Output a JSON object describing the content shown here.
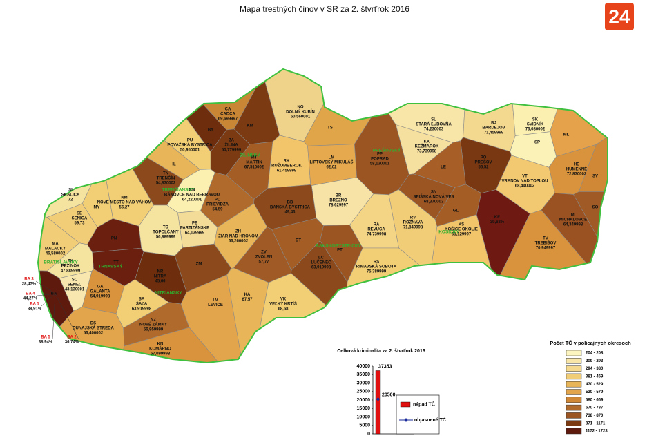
{
  "title": "Mapa trestných činov v SR za 2. štvrťrok 2016",
  "logo": "24",
  "districts": [
    {
      "code": "CA",
      "name": "ČADCA",
      "value": "69,699997",
      "color": "#c98635"
    },
    {
      "code": "KM",
      "color": "#7b3a12"
    },
    {
      "code": "BY",
      "color": "#6e2e0e"
    },
    {
      "code": "ZA",
      "name": "ŽILINA",
      "value": "50,779999",
      "color": "#7b3a12"
    },
    {
      "code": "PU",
      "name": "POVAŽSKÁ BYSTRICA",
      "value": "50,950001",
      "color": "#f2cf75"
    },
    {
      "code": "IL",
      "color": "#e8b558"
    },
    {
      "code": "TN",
      "name": "TRENČÍN",
      "value": "54,830002",
      "color": "#8c4a1c"
    },
    {
      "code": "MT",
      "name": "MARTIN",
      "value": "67,510002",
      "color": "#a35d25"
    },
    {
      "code": "NO",
      "name": "DOLNÝ KUBÍN",
      "value": "60,560001",
      "color": "#f0d38a"
    },
    {
      "code": "TS",
      "color": "#e0a548"
    },
    {
      "code": "RK",
      "name": "RUŽOMBEROK",
      "value": "61,459999",
      "color": "#f2c56a"
    },
    {
      "code": "LM",
      "name": "LIPTOVSKÝ MIKULÁŠ",
      "value": "62,02",
      "color": "#e6a94d"
    },
    {
      "code": "PP",
      "name": "POPRAD",
      "value": "58,130001",
      "color": "#9b5522"
    },
    {
      "code": "KK",
      "name": "KEŽMAROK",
      "value": "73,739998",
      "color": "#f6e0a0"
    },
    {
      "code": "SL",
      "name": "STARÁ ĽUBOVŇA",
      "value": "74,230003",
      "color": "#f8e6a8"
    },
    {
      "code": "BJ",
      "name": "BARDEJOV",
      "value": "71,459999",
      "color": "#f3d890"
    },
    {
      "code": "SK",
      "name": "SVIDNÍK",
      "value": "73,080002",
      "color": "#fbf0b0"
    },
    {
      "code": "SP",
      "color": "#fbf2b8"
    },
    {
      "code": "ML",
      "color": "#e5a24a"
    },
    {
      "code": "HE",
      "name": "HUMENNÉ",
      "value": "72,830002",
      "color": "#d8933c"
    },
    {
      "code": "SV",
      "color": "#d08836"
    },
    {
      "code": "VT",
      "name": "VRANOV NAD TOPĽOU",
      "value": "68,440002",
      "color": "#f2c970"
    },
    {
      "code": "PO",
      "name": "PREŠOV",
      "value": "56,52",
      "color": "#7a3812"
    },
    {
      "code": "LE",
      "color": "#a85f27"
    },
    {
      "code": "SN",
      "name": "SPIŠSKÁ NOVÁ VES",
      "value": "68,370003",
      "color": "#9b5523"
    },
    {
      "code": "GL",
      "color": "#a35d25"
    },
    {
      "code": "KS",
      "name": "KOŠICE OKOLIE",
      "value": "68,129997",
      "color": "#f2c56a"
    },
    {
      "code": "KE",
      "value": "39,63%",
      "color": "#6e1a12"
    },
    {
      "code": "MI",
      "name": "MICHALOVCE",
      "value": "64,349998",
      "color": "#9b5222"
    },
    {
      "code": "SO",
      "color": "#a05a25"
    },
    {
      "code": "TV",
      "name": "TREBIŠOV",
      "value": "70,949997",
      "color": "#d8933c"
    },
    {
      "code": "RV",
      "name": "ROŽŇAVA",
      "value": "71,849998",
      "color": "#f2cd78"
    },
    {
      "code": "RA",
      "name": "REVÚCA",
      "value": "74,739998",
      "color": "#f4d585"
    },
    {
      "code": "BR",
      "name": "BREZNO",
      "value": "78,629997",
      "color": "#f6e3a5"
    },
    {
      "code": "BB",
      "name": "BANSKÁ BYSTRICA",
      "value": "49,43",
      "color": "#8c4a1c"
    },
    {
      "code": "ZH",
      "name": "ŽIAR NAD HRONOM",
      "value": "66,260002",
      "color": "#e8b558"
    },
    {
      "code": "PD",
      "name": "PRIEVIDZA",
      "value": "54,59",
      "color": "#b06a2c"
    },
    {
      "code": "BN",
      "name": "BÁNOVCE NAD BEBRAVOU",
      "value": "64,220001",
      "color": "#fbf0b0"
    },
    {
      "code": "PE",
      "name": "PARTIZÁNSKE",
      "value": "64,139999",
      "color": "#f3dc98"
    },
    {
      "code": "TO",
      "name": "TOPOĽČANY",
      "value": "56,889999",
      "color": "#f5e3a0"
    },
    {
      "code": "NM",
      "name": "NOVÉ MESTO NAD VÁHOM",
      "value": "56,27",
      "color": "#f2cf75"
    },
    {
      "code": "MY",
      "color": "#f2cf75"
    },
    {
      "code": "SI",
      "name": "SKALICA",
      "value": "72",
      "color": "#f5e3a0"
    },
    {
      "code": "SE",
      "name": "SENICA",
      "value": "59,73",
      "color": "#f2cd78"
    },
    {
      "code": "PN",
      "color": "#6a1f0f"
    },
    {
      "code": "TT",
      "color": "#6a1f0f"
    },
    {
      "code": "MA",
      "name": "MALACKY",
      "value": "46,580002",
      "color": "#f2cd78"
    },
    {
      "code": "PK",
      "name": "PEZINOK",
      "value": "47,889999",
      "color": "#f5e3a0"
    },
    {
      "code": "SC",
      "name": "SENEC",
      "value": "43,130001",
      "color": "#f8e8b0"
    },
    {
      "code": "BA",
      "color": "#5e1a0d"
    },
    {
      "code": "GA",
      "name": "GALANTA",
      "value": "54,919998",
      "color": "#d8933c"
    },
    {
      "code": "DS",
      "name": "DUNAJSKÁ STREDA",
      "value": "56,400002",
      "color": "#e2a54c"
    },
    {
      "code": "SA",
      "name": "ŠAĽA",
      "value": "63,919998",
      "color": "#f2cf75"
    },
    {
      "code": "NR",
      "name": "NITRA",
      "value": "45,66",
      "color": "#6e2e0e"
    },
    {
      "code": "ZM",
      "color": "#8c4a1c"
    },
    {
      "code": "NZ",
      "name": "NOVÉ ZÁMKY",
      "value": "56,959999",
      "color": "#b06a2c"
    },
    {
      "code": "KN",
      "name": "KOMÁRNO",
      "value": "57,099998",
      "color": "#d8933c"
    },
    {
      "code": "LV",
      "name": "LEVICE",
      "color": "#e2a54c"
    },
    {
      "code": "KA",
      "value": "67,57",
      "color": "#e8b558"
    },
    {
      "code": "VK",
      "name": "VEĽKÝ KRTÍŠ",
      "value": "68,68",
      "color": "#f2cf75"
    },
    {
      "code": "ZV",
      "name": "ZVOLEN",
      "value": "57,77",
      "color": "#a05a25"
    },
    {
      "code": "DT",
      "color": "#a35d25"
    },
    {
      "code": "LC",
      "name": "LUČENEC",
      "value": "63,919998",
      "color": "#8c4a1c"
    },
    {
      "code": "PT",
      "color": "#9b5522"
    },
    {
      "code": "RS",
      "name": "RIMAVSKÁ SOBOTA",
      "value": "75,389999",
      "color": "#f2cf75"
    }
  ],
  "regions": [
    "ŽILINSKÝ",
    "PREŠOVSKÝ",
    "TRENČIANSKY",
    "TRNAVSKÝ",
    "NITRIANSKY",
    "BANSKOBYSTRICKÝ",
    "KOŠICKÝ",
    "BRATISLAVSKÝ"
  ],
  "bratislava": [
    {
      "code": "BA 1",
      "value": "38,91%"
    },
    {
      "code": "BA 2",
      "value": "36,74%"
    },
    {
      "code": "BA 3",
      "value": "28,47%"
    },
    {
      "code": "BA 4",
      "value": "44,27%"
    },
    {
      "code": "BA 5",
      "value": "38,94%"
    }
  ],
  "inset_chart": {
    "type": "bar",
    "title": "Celková kriminalita za 2. štvrťrok 2016",
    "ylim": [
      0,
      40000
    ],
    "yticks": [
      0,
      5000,
      10000,
      15000,
      20000,
      25000,
      30000,
      35000,
      40000
    ],
    "series": [
      {
        "name": "nápad TČ",
        "color": "#e01010",
        "values": [
          37353
        ]
      },
      {
        "name": "objasnené TČ",
        "color": "#1a2a9a",
        "values": [
          20500
        ]
      }
    ]
  },
  "legend": {
    "title": "Počet TČ v policajných okresoch",
    "items": [
      {
        "label": "204 - 208",
        "color": "#fdf5c0"
      },
      {
        "label": "209 - 293",
        "color": "#f8e6a8"
      },
      {
        "label": "294 - 380",
        "color": "#f5d98e"
      },
      {
        "label": "381 - 469",
        "color": "#f2cd78"
      },
      {
        "label": "470 - 529",
        "color": "#e8b558"
      },
      {
        "label": "530 - 579",
        "color": "#e2a54c"
      },
      {
        "label": "580 - 669",
        "color": "#d08836"
      },
      {
        "label": "670 - 737",
        "color": "#b06a2c"
      },
      {
        "label": "738 - 870",
        "color": "#9b5522"
      },
      {
        "label": "871 - 1171",
        "color": "#7b3a12"
      },
      {
        "label": "1172 - 1723",
        "color": "#5e1a0d"
      }
    ]
  }
}
